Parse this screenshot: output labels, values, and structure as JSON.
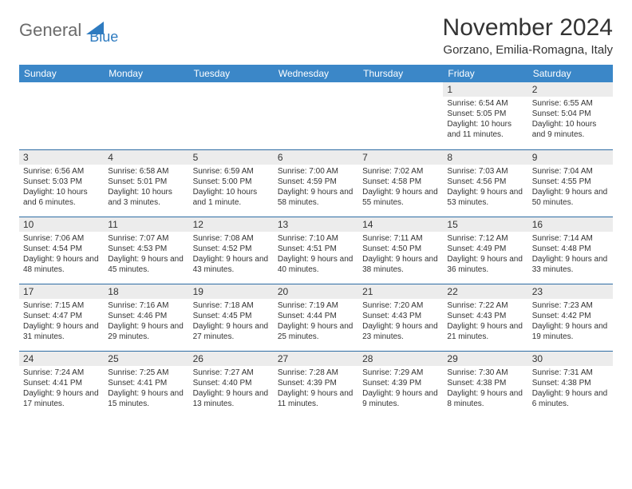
{
  "logo": {
    "part1": "General",
    "part2": "Blue"
  },
  "title": "November 2024",
  "location": "Gorzano, Emilia-Romagna, Italy",
  "colors": {
    "header_bg": "#3b87c8",
    "border": "#2e6da4",
    "daynum_bg": "#ececec",
    "logo_accent": "#2e7bc0"
  },
  "weekdays": [
    "Sunday",
    "Monday",
    "Tuesday",
    "Wednesday",
    "Thursday",
    "Friday",
    "Saturday"
  ],
  "weeks": [
    [
      {
        "n": "",
        "sr": "",
        "ss": "",
        "dl": ""
      },
      {
        "n": "",
        "sr": "",
        "ss": "",
        "dl": ""
      },
      {
        "n": "",
        "sr": "",
        "ss": "",
        "dl": ""
      },
      {
        "n": "",
        "sr": "",
        "ss": "",
        "dl": ""
      },
      {
        "n": "",
        "sr": "",
        "ss": "",
        "dl": ""
      },
      {
        "n": "1",
        "sr": "Sunrise: 6:54 AM",
        "ss": "Sunset: 5:05 PM",
        "dl": "Daylight: 10 hours and 11 minutes."
      },
      {
        "n": "2",
        "sr": "Sunrise: 6:55 AM",
        "ss": "Sunset: 5:04 PM",
        "dl": "Daylight: 10 hours and 9 minutes."
      }
    ],
    [
      {
        "n": "3",
        "sr": "Sunrise: 6:56 AM",
        "ss": "Sunset: 5:03 PM",
        "dl": "Daylight: 10 hours and 6 minutes."
      },
      {
        "n": "4",
        "sr": "Sunrise: 6:58 AM",
        "ss": "Sunset: 5:01 PM",
        "dl": "Daylight: 10 hours and 3 minutes."
      },
      {
        "n": "5",
        "sr": "Sunrise: 6:59 AM",
        "ss": "Sunset: 5:00 PM",
        "dl": "Daylight: 10 hours and 1 minute."
      },
      {
        "n": "6",
        "sr": "Sunrise: 7:00 AM",
        "ss": "Sunset: 4:59 PM",
        "dl": "Daylight: 9 hours and 58 minutes."
      },
      {
        "n": "7",
        "sr": "Sunrise: 7:02 AM",
        "ss": "Sunset: 4:58 PM",
        "dl": "Daylight: 9 hours and 55 minutes."
      },
      {
        "n": "8",
        "sr": "Sunrise: 7:03 AM",
        "ss": "Sunset: 4:56 PM",
        "dl": "Daylight: 9 hours and 53 minutes."
      },
      {
        "n": "9",
        "sr": "Sunrise: 7:04 AM",
        "ss": "Sunset: 4:55 PM",
        "dl": "Daylight: 9 hours and 50 minutes."
      }
    ],
    [
      {
        "n": "10",
        "sr": "Sunrise: 7:06 AM",
        "ss": "Sunset: 4:54 PM",
        "dl": "Daylight: 9 hours and 48 minutes."
      },
      {
        "n": "11",
        "sr": "Sunrise: 7:07 AM",
        "ss": "Sunset: 4:53 PM",
        "dl": "Daylight: 9 hours and 45 minutes."
      },
      {
        "n": "12",
        "sr": "Sunrise: 7:08 AM",
        "ss": "Sunset: 4:52 PM",
        "dl": "Daylight: 9 hours and 43 minutes."
      },
      {
        "n": "13",
        "sr": "Sunrise: 7:10 AM",
        "ss": "Sunset: 4:51 PM",
        "dl": "Daylight: 9 hours and 40 minutes."
      },
      {
        "n": "14",
        "sr": "Sunrise: 7:11 AM",
        "ss": "Sunset: 4:50 PM",
        "dl": "Daylight: 9 hours and 38 minutes."
      },
      {
        "n": "15",
        "sr": "Sunrise: 7:12 AM",
        "ss": "Sunset: 4:49 PM",
        "dl": "Daylight: 9 hours and 36 minutes."
      },
      {
        "n": "16",
        "sr": "Sunrise: 7:14 AM",
        "ss": "Sunset: 4:48 PM",
        "dl": "Daylight: 9 hours and 33 minutes."
      }
    ],
    [
      {
        "n": "17",
        "sr": "Sunrise: 7:15 AM",
        "ss": "Sunset: 4:47 PM",
        "dl": "Daylight: 9 hours and 31 minutes."
      },
      {
        "n": "18",
        "sr": "Sunrise: 7:16 AM",
        "ss": "Sunset: 4:46 PM",
        "dl": "Daylight: 9 hours and 29 minutes."
      },
      {
        "n": "19",
        "sr": "Sunrise: 7:18 AM",
        "ss": "Sunset: 4:45 PM",
        "dl": "Daylight: 9 hours and 27 minutes."
      },
      {
        "n": "20",
        "sr": "Sunrise: 7:19 AM",
        "ss": "Sunset: 4:44 PM",
        "dl": "Daylight: 9 hours and 25 minutes."
      },
      {
        "n": "21",
        "sr": "Sunrise: 7:20 AM",
        "ss": "Sunset: 4:43 PM",
        "dl": "Daylight: 9 hours and 23 minutes."
      },
      {
        "n": "22",
        "sr": "Sunrise: 7:22 AM",
        "ss": "Sunset: 4:43 PM",
        "dl": "Daylight: 9 hours and 21 minutes."
      },
      {
        "n": "23",
        "sr": "Sunrise: 7:23 AM",
        "ss": "Sunset: 4:42 PM",
        "dl": "Daylight: 9 hours and 19 minutes."
      }
    ],
    [
      {
        "n": "24",
        "sr": "Sunrise: 7:24 AM",
        "ss": "Sunset: 4:41 PM",
        "dl": "Daylight: 9 hours and 17 minutes."
      },
      {
        "n": "25",
        "sr": "Sunrise: 7:25 AM",
        "ss": "Sunset: 4:41 PM",
        "dl": "Daylight: 9 hours and 15 minutes."
      },
      {
        "n": "26",
        "sr": "Sunrise: 7:27 AM",
        "ss": "Sunset: 4:40 PM",
        "dl": "Daylight: 9 hours and 13 minutes."
      },
      {
        "n": "27",
        "sr": "Sunrise: 7:28 AM",
        "ss": "Sunset: 4:39 PM",
        "dl": "Daylight: 9 hours and 11 minutes."
      },
      {
        "n": "28",
        "sr": "Sunrise: 7:29 AM",
        "ss": "Sunset: 4:39 PM",
        "dl": "Daylight: 9 hours and 9 minutes."
      },
      {
        "n": "29",
        "sr": "Sunrise: 7:30 AM",
        "ss": "Sunset: 4:38 PM",
        "dl": "Daylight: 9 hours and 8 minutes."
      },
      {
        "n": "30",
        "sr": "Sunrise: 7:31 AM",
        "ss": "Sunset: 4:38 PM",
        "dl": "Daylight: 9 hours and 6 minutes."
      }
    ]
  ]
}
